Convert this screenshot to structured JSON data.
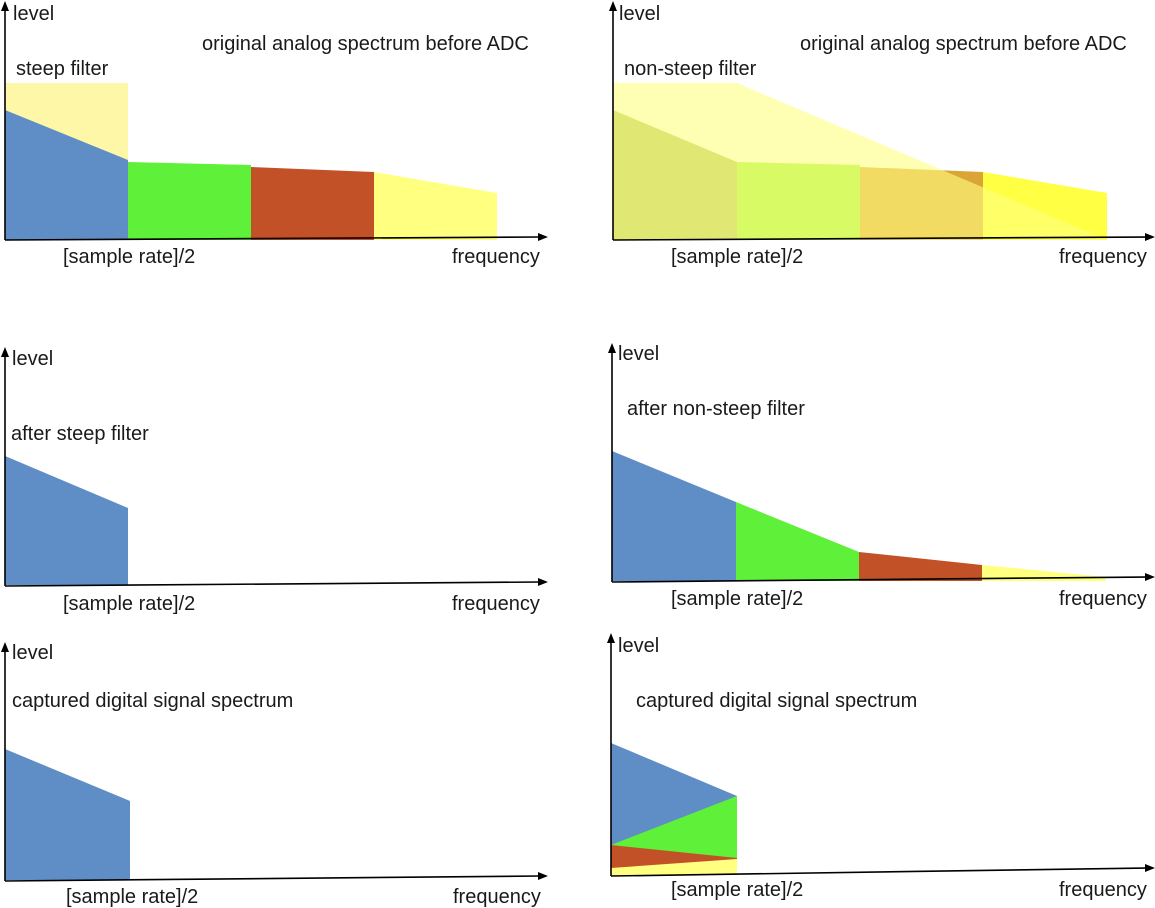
{
  "colors": {
    "blue": "#5f8dc6",
    "green": "#5ff03a",
    "red": "#c25128",
    "yellow": "#ffff80",
    "pale_yellow": "#fff7a8",
    "olive": "#b4c460",
    "light_green": "#9ef43e",
    "orange": "#dba536",
    "bright_yellow": "#ffff44"
  },
  "panels": {
    "steep_analog": {
      "y_label": "level",
      "x_label": "frequency",
      "nyquist_label": "[sample rate]/2",
      "title": "original analog spectrum before ADC",
      "caption": "steep filter"
    },
    "nonsteep_analog": {
      "y_label": "level",
      "x_label": "frequency",
      "nyquist_label": "[sample rate]/2",
      "title": "original analog spectrum before ADC",
      "caption": "non-steep filter"
    },
    "steep_filtered": {
      "y_label": "level",
      "x_label": "frequency",
      "nyquist_label": "[sample rate]/2",
      "caption": "after steep filter"
    },
    "nonsteep_filtered": {
      "y_label": "level",
      "x_label": "frequency",
      "nyquist_label": "[sample rate]/2",
      "caption": "after non-steep filter"
    },
    "steep_captured": {
      "y_label": "level",
      "x_label": "frequency",
      "nyquist_label": "[sample rate]/2",
      "caption": "captured digital signal spectrum"
    },
    "nonsteep_captured": {
      "y_label": "level",
      "x_label": "frequency",
      "nyquist_label": "[sample rate]/2",
      "caption": "captured digital signal spectrum"
    }
  }
}
